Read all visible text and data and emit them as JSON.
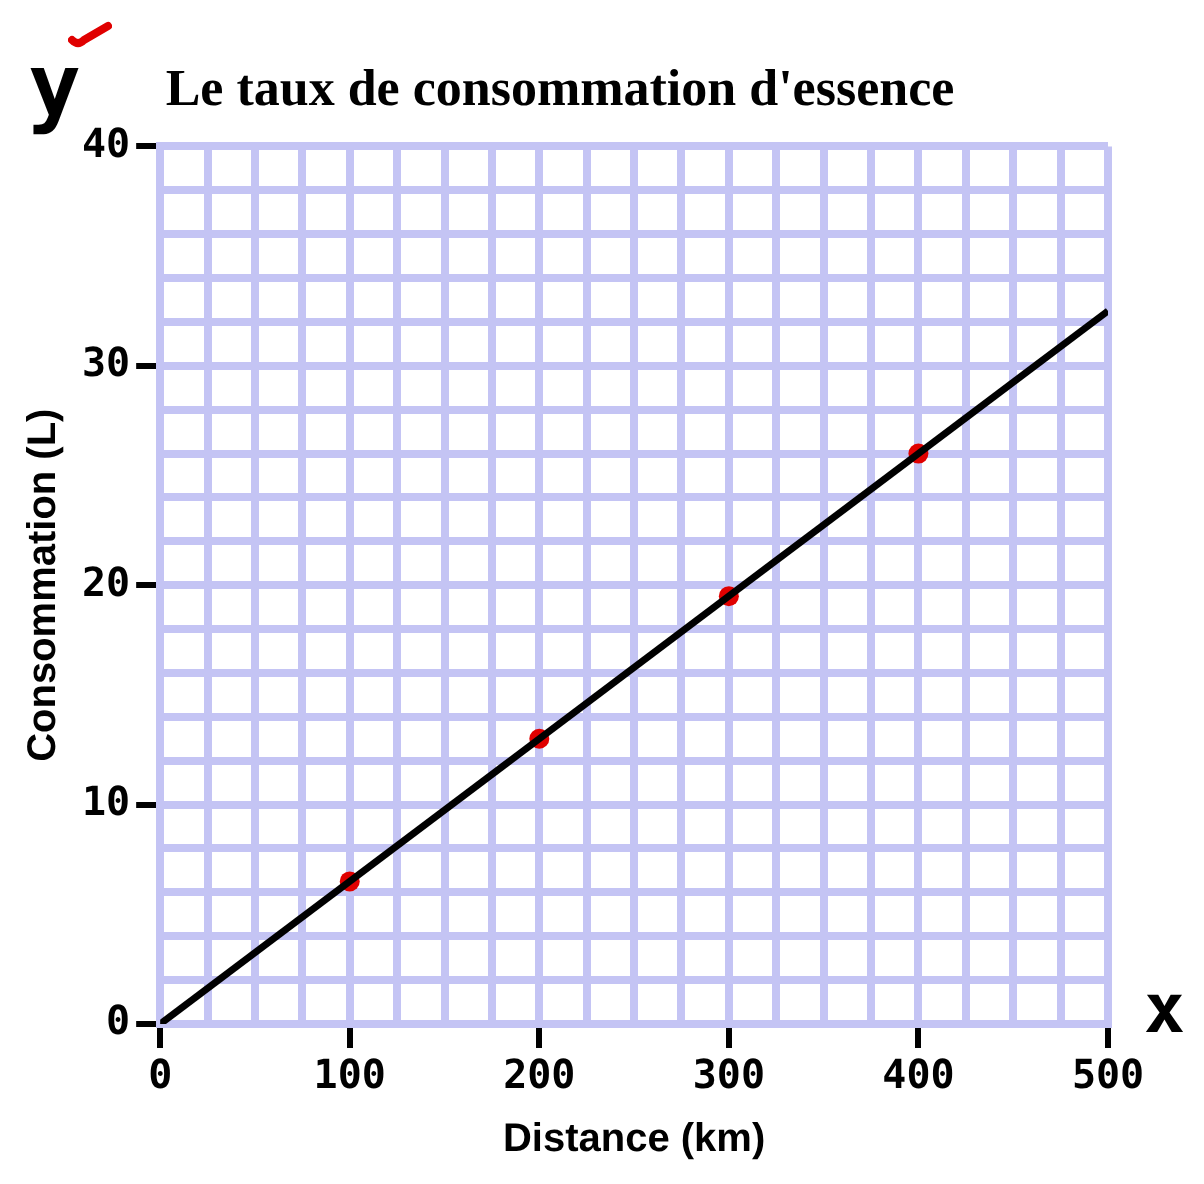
{
  "chart_data": {
    "type": "scatter",
    "title": "Le taux de consommation d'essence",
    "xlabel": "Distance (km)",
    "ylabel": "Consommation (L)",
    "annotations": [
      "y",
      "x"
    ],
    "series": [
      {
        "type": "line",
        "color": "#000000",
        "x": [
          0,
          500
        ],
        "values": [
          0,
          32.5
        ],
        "marker": "none"
      },
      {
        "color": "#e00000",
        "x": [
          100,
          200,
          300,
          400
        ],
        "values": [
          6.5,
          13,
          19.5,
          26
        ],
        "marker": "circle"
      }
    ],
    "xlim": [
      0,
      500
    ],
    "ylim": [
      0,
      40
    ],
    "xticks": [
      0,
      {
        "value": 25,
        "label": null
      },
      {
        "value": 50,
        "label": null
      },
      {
        "value": 75,
        "label": null
      },
      100,
      {
        "value": 125,
        "label": null
      },
      {
        "value": 150,
        "label": null
      },
      {
        "value": 175,
        "label": null
      },
      200,
      {
        "value": 225,
        "label": null
      },
      {
        "value": 250,
        "label": null
      },
      {
        "value": 275,
        "label": null
      },
      300,
      {
        "value": 325,
        "label": null
      },
      {
        "value": 350,
        "label": null
      },
      {
        "value": 375,
        "label": null
      },
      400,
      {
        "value": 425,
        "label": null
      },
      {
        "value": 450,
        "label": null
      },
      {
        "value": 475,
        "label": null
      },
      500
    ],
    "yticks": [
      0,
      {
        "value": 2,
        "label": null
      },
      {
        "value": 4,
        "label": null
      },
      {
        "value": 6,
        "label": null
      },
      {
        "value": 8,
        "label": null
      },
      10,
      {
        "value": 12,
        "label": null
      },
      {
        "value": 14,
        "label": null
      },
      {
        "value": 16,
        "label": null
      },
      {
        "value": 18,
        "label": null
      },
      20,
      {
        "value": 22,
        "label": null
      },
      {
        "value": 24,
        "label": null
      },
      {
        "value": 26,
        "label": null
      },
      {
        "value": 28,
        "label": null
      },
      30,
      {
        "value": 32,
        "label": null
      },
      {
        "value": 34,
        "label": null
      },
      {
        "value": 36,
        "label": null
      },
      {
        "value": 38,
        "label": null
      },
      40
    ],
    "grid": true,
    "legend": false
  }
}
